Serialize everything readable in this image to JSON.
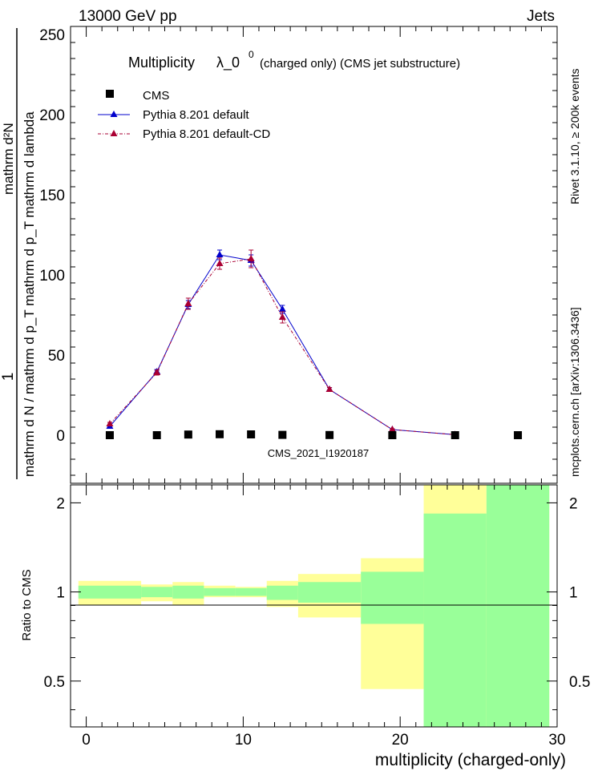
{
  "header": {
    "left": "13000 GeV pp",
    "right": "Jets"
  },
  "main_title": {
    "prefix": "Multiplicity",
    "symbol": "λ_0",
    "superscript": "0",
    "suffix": "(charged only) (CMS jet substructure)"
  },
  "side_text": {
    "rivet": "Rivet 3.1.10, ≥ 200k events",
    "mcplots": "mcplots.cern.ch [arXiv:1306.3436]"
  },
  "watermark": "CMS_2021_I1920187",
  "ylabel_top": {
    "numerator": "1",
    "denominator": "mathrm d N / mathrm d p_T mathrm d p_T mathrm d lambda",
    "full": "1 / (mathrm d N / mathrm d p T) · mathrm d²N / (mathrm d p T mathrm d lambda)"
  },
  "ylabel_ratio": "Ratio to CMS",
  "xlabel": "multiplicity (charged-only)",
  "colors": {
    "cms": "#000000",
    "pythia_default": "#0000cc",
    "pythia_cd": "#aa0033",
    "band_yellow": "#ffff99",
    "band_green": "#99ff99"
  },
  "chart_data": [
    {
      "type": "scatter",
      "panel": "main",
      "xlim": [
        -1,
        30
      ],
      "ylim": [
        -30,
        255
      ],
      "yticks": [
        0,
        50,
        100,
        150,
        200,
        250
      ],
      "xticks": [
        0,
        10,
        20,
        30
      ],
      "legend": {
        "placement": "top-left",
        "entries": [
          "CMS",
          "Pythia 8.201 default",
          "Pythia 8.201 default-CD"
        ]
      },
      "series": [
        {
          "name": "CMS",
          "marker": "square",
          "x": [
            1.5,
            4.5,
            6.5,
            8.5,
            10.5,
            12.5,
            15.5,
            19.5,
            23.5,
            27.5
          ],
          "y": [
            0.0,
            0.0,
            0.4,
            0.6,
            0.5,
            0.2,
            0.1,
            0.0,
            0.0,
            0.0
          ]
        },
        {
          "name": "Pythia 8.201 default",
          "marker": "triangle",
          "line": "solid",
          "x": [
            1.5,
            4.5,
            6.5,
            8.5,
            10.5,
            12.5,
            15.5,
            19.5,
            23.5
          ],
          "y": [
            5.5,
            39.5,
            81.5,
            112.5,
            109.0,
            78.5,
            28.5,
            3.5,
            0.3
          ],
          "err": [
            1.0,
            1.5,
            2.5,
            3.0,
            3.5,
            2.5,
            1.2,
            0.5,
            0.2
          ]
        },
        {
          "name": "Pythia 8.201 default-CD",
          "marker": "triangle",
          "line": "dash-dot",
          "x": [
            1.5,
            4.5,
            6.5,
            8.5,
            10.5,
            12.5,
            15.5,
            19.5,
            23.5
          ],
          "y": [
            7.0,
            39.0,
            82.0,
            107.0,
            110.0,
            73.5,
            28.5,
            3.5,
            0.3
          ],
          "err": [
            1.0,
            1.5,
            3.5,
            3.5,
            5.5,
            3.5,
            1.2,
            0.5,
            0.2
          ]
        }
      ]
    },
    {
      "type": "area",
      "panel": "ratio",
      "xlim": [
        -1,
        30
      ],
      "ylim": [
        0.35,
        2.3
      ],
      "yticks": [
        0.5,
        1,
        2
      ],
      "ylabel": "Ratio to CMS",
      "reference_line": 1,
      "bins": [
        {
          "x0": -0.5,
          "x1": 3.5,
          "green": [
            0.95,
            1.05
          ],
          "yellow": [
            0.9,
            1.09
          ]
        },
        {
          "x0": 3.5,
          "x1": 5.5,
          "green": [
            0.96,
            1.04
          ],
          "yellow": [
            0.93,
            1.06
          ]
        },
        {
          "x0": 5.5,
          "x1": 7.5,
          "green": [
            0.95,
            1.05
          ],
          "yellow": [
            0.9,
            1.08
          ]
        },
        {
          "x0": 7.5,
          "x1": 9.5,
          "green": [
            0.97,
            1.03
          ],
          "yellow": [
            0.96,
            1.05
          ]
        },
        {
          "x0": 9.5,
          "x1": 11.5,
          "green": [
            0.97,
            1.03
          ],
          "yellow": [
            0.96,
            1.04
          ]
        },
        {
          "x0": 11.5,
          "x1": 13.5,
          "green": [
            0.94,
            1.05
          ],
          "yellow": [
            0.89,
            1.09
          ]
        },
        {
          "x0": 13.5,
          "x1": 17.5,
          "green": [
            0.92,
            1.08
          ],
          "yellow": [
            0.82,
            1.15
          ]
        },
        {
          "x0": 17.5,
          "x1": 21.5,
          "green": [
            0.78,
            1.17
          ],
          "yellow": [
            0.47,
            1.3
          ]
        },
        {
          "x0": 21.5,
          "x1": 25.5,
          "green": [
            0.35,
            1.84
          ],
          "yellow": [
            0.35,
            2.3
          ]
        },
        {
          "x0": 25.5,
          "x1": 29.5,
          "green": [
            0.35,
            2.3
          ],
          "yellow": [
            0.35,
            2.3
          ]
        }
      ]
    }
  ]
}
